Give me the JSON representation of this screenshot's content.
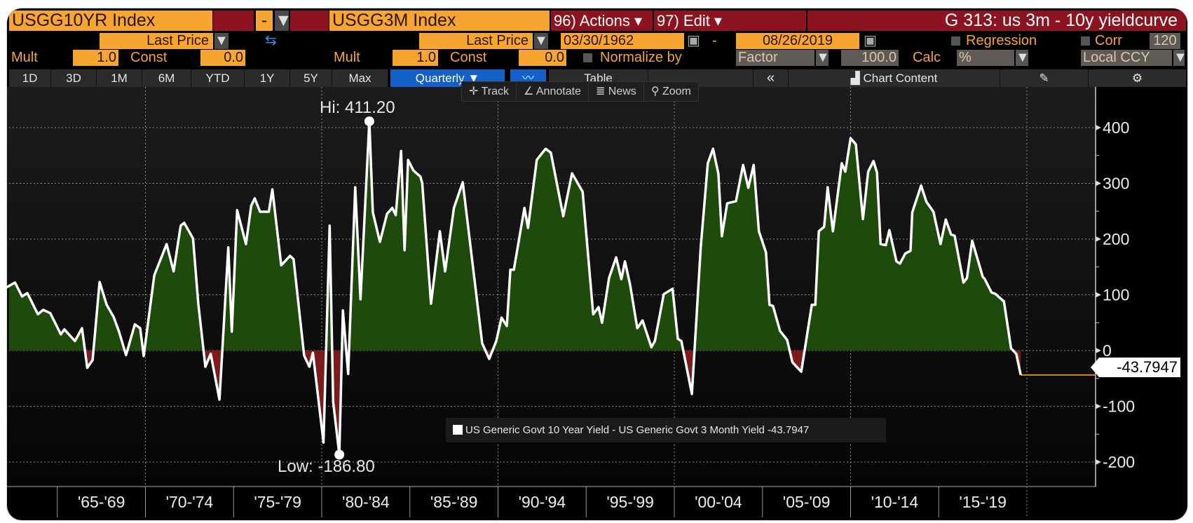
{
  "header": {
    "security1": "USGG10YR Index",
    "operator": "-",
    "security2": "USGG3M Index",
    "actions": "96) Actions ▾",
    "edit": "97) Edit ▾",
    "title": "G 313: us 3m - 10y yieldcurve"
  },
  "row2": {
    "field1": "Last Price",
    "field2": "Last Price",
    "start_date": "03/30/1962",
    "date_sep": "-",
    "end_date": "08/26/2019",
    "regression": "Regression",
    "corr": "Corr",
    "corr_value": "120"
  },
  "row3": {
    "mult_label": "Mult",
    "mult1": "1.0",
    "const_label": "Const",
    "const1": "0.0",
    "mult2": "1.0",
    "const2": "0.0",
    "normalize_label": "Normalize by",
    "normalize_value": "Factor",
    "factor_value": "100.0",
    "calc_label": "Calc",
    "calc_value": "%",
    "currency": "Local CCY"
  },
  "toolbar": {
    "ranges": [
      "1D",
      "3D",
      "1M",
      "6M",
      "YTD",
      "1Y",
      "5Y",
      "Max"
    ],
    "frequency": "Quarterly ▼",
    "table": "Table",
    "collapse": "«",
    "chart_content": "Chart Content"
  },
  "chart_tools": [
    "Track",
    "Annotate",
    "News",
    "Zoom"
  ],
  "colors": {
    "positive_fill": "#1e4a0b",
    "negative_fill": "#7c1a1c",
    "line": "#ffffff",
    "last_line": "#d4882a"
  },
  "chart_data": {
    "type": "area",
    "title": "G 313: us 3m - 10y yieldcurve",
    "legend": "US Generic Govt 10 Year Yield - US Generic Govt 3 Month Yield -43.7947",
    "last_value": "-43.7947",
    "hi_label": "Hi: 411.20",
    "low_label": "Low: -186.80",
    "hi": {
      "x": 1982.7,
      "y": 411.2
    },
    "low": {
      "x": 1981.0,
      "y": -186.8
    },
    "ylim": [
      -230,
      440
    ],
    "yticks": [
      400,
      300,
      200,
      100,
      0,
      -100,
      -200
    ],
    "ytick_labels": [
      "400",
      "300",
      "200",
      "100",
      "0",
      "-100",
      "-200"
    ],
    "x_periods": [
      "'65-'69",
      "'70-'74",
      "'75-'79",
      "'80-'84",
      "'85-'89",
      "'90-'94",
      "'95-'99",
      "'00-'04",
      "'05-'09",
      "'10-'14",
      "'15-'19"
    ],
    "grid": true,
    "points": [
      [
        1962.1,
        113
      ],
      [
        1962.6,
        122
      ],
      [
        1963.0,
        97
      ],
      [
        1963.3,
        103
      ],
      [
        1963.9,
        65
      ],
      [
        1964.2,
        73
      ],
      [
        1964.6,
        67
      ],
      [
        1965.2,
        29
      ],
      [
        1965.4,
        38
      ],
      [
        1966.0,
        17
      ],
      [
        1966.4,
        40
      ],
      [
        1966.7,
        -31
      ],
      [
        1967.0,
        -17
      ],
      [
        1967.4,
        123
      ],
      [
        1967.8,
        82
      ],
      [
        1968.2,
        60
      ],
      [
        1968.5,
        34
      ],
      [
        1968.9,
        -8
      ],
      [
        1969.4,
        47
      ],
      [
        1969.7,
        40
      ],
      [
        1969.9,
        -10
      ],
      [
        1970.5,
        135
      ],
      [
        1971.2,
        191
      ],
      [
        1971.6,
        142
      ],
      [
        1972.0,
        224
      ],
      [
        1972.2,
        229
      ],
      [
        1972.7,
        201
      ],
      [
        1973.0,
        84
      ],
      [
        1973.4,
        -29
      ],
      [
        1973.7,
        -6
      ],
      [
        1974.2,
        -88
      ],
      [
        1974.7,
        185
      ],
      [
        1974.9,
        34
      ],
      [
        1975.2,
        252
      ],
      [
        1975.7,
        191
      ],
      [
        1976.0,
        260
      ],
      [
        1976.2,
        273
      ],
      [
        1976.5,
        249
      ],
      [
        1977.0,
        249
      ],
      [
        1977.2,
        289
      ],
      [
        1977.7,
        153
      ],
      [
        1978.2,
        170
      ],
      [
        1978.4,
        164
      ],
      [
        1979.0,
        -9
      ],
      [
        1979.3,
        -29
      ],
      [
        1979.5,
        -4
      ],
      [
        1980.1,
        -165
      ],
      [
        1980.45,
        224
      ],
      [
        1980.65,
        -92
      ],
      [
        1981.0,
        -186.8
      ],
      [
        1981.2,
        72
      ],
      [
        1981.5,
        -42
      ],
      [
        1981.9,
        293
      ],
      [
        1982.2,
        92
      ],
      [
        1982.7,
        411.2
      ],
      [
        1982.9,
        248
      ],
      [
        1983.3,
        195
      ],
      [
        1983.7,
        245
      ],
      [
        1984.0,
        256
      ],
      [
        1984.2,
        243
      ],
      [
        1984.5,
        358
      ],
      [
        1984.7,
        180
      ],
      [
        1984.9,
        342
      ],
      [
        1985.2,
        323
      ],
      [
        1985.6,
        312
      ],
      [
        1985.7,
        300
      ],
      [
        1986.2,
        84
      ],
      [
        1986.7,
        214
      ],
      [
        1987.0,
        142
      ],
      [
        1987.5,
        256
      ],
      [
        1988.0,
        302
      ],
      [
        1989.1,
        13
      ],
      [
        1989.5,
        -15
      ],
      [
        1989.9,
        17
      ],
      [
        1990.2,
        59
      ],
      [
        1990.5,
        44
      ],
      [
        1990.7,
        145
      ],
      [
        1990.9,
        145
      ],
      [
        1991.5,
        256
      ],
      [
        1991.7,
        220
      ],
      [
        1992.2,
        342
      ],
      [
        1992.7,
        362
      ],
      [
        1993.0,
        355
      ],
      [
        1993.7,
        241
      ],
      [
        1994.2,
        318
      ],
      [
        1994.8,
        285
      ],
      [
        1995.4,
        65
      ],
      [
        1995.7,
        78
      ],
      [
        1995.9,
        50
      ],
      [
        1996.3,
        130
      ],
      [
        1996.7,
        167
      ],
      [
        1997.0,
        128
      ],
      [
        1997.2,
        160
      ],
      [
        1997.5,
        117
      ],
      [
        1997.9,
        40
      ],
      [
        1998.2,
        54
      ],
      [
        1998.7,
        6
      ],
      [
        1998.9,
        17
      ],
      [
        1999.4,
        101
      ],
      [
        1999.9,
        111
      ],
      [
        2000.2,
        21
      ],
      [
        2000.4,
        17
      ],
      [
        2001.0,
        -78
      ],
      [
        2001.5,
        185
      ],
      [
        2001.9,
        336
      ],
      [
        2002.2,
        362
      ],
      [
        2002.5,
        317
      ],
      [
        2002.7,
        205
      ],
      [
        2003.0,
        264
      ],
      [
        2003.5,
        268
      ],
      [
        2003.9,
        333
      ],
      [
        2004.2,
        292
      ],
      [
        2004.5,
        333
      ],
      [
        2004.8,
        214
      ],
      [
        2005.2,
        176
      ],
      [
        2005.4,
        82
      ],
      [
        2005.6,
        80
      ],
      [
        2006.0,
        35
      ],
      [
        2006.4,
        19
      ],
      [
        2006.7,
        -21
      ],
      [
        2007.2,
        -38
      ],
      [
        2007.8,
        82
      ],
      [
        2008.0,
        82
      ],
      [
        2008.2,
        214
      ],
      [
        2008.5,
        222
      ],
      [
        2008.7,
        293
      ],
      [
        2009.0,
        214
      ],
      [
        2009.5,
        336
      ],
      [
        2009.7,
        321
      ],
      [
        2010.0,
        381
      ],
      [
        2010.3,
        370
      ],
      [
        2010.7,
        236
      ],
      [
        2011.0,
        321
      ],
      [
        2011.3,
        340
      ],
      [
        2011.5,
        319
      ],
      [
        2011.7,
        191
      ],
      [
        2012.0,
        189
      ],
      [
        2012.2,
        216
      ],
      [
        2012.6,
        160
      ],
      [
        2012.8,
        156
      ],
      [
        2013.1,
        174
      ],
      [
        2013.4,
        179
      ],
      [
        2013.5,
        248
      ],
      [
        2014.0,
        296
      ],
      [
        2014.3,
        267
      ],
      [
        2014.7,
        249
      ],
      [
        2015.1,
        191
      ],
      [
        2015.4,
        235
      ],
      [
        2015.7,
        208
      ],
      [
        2015.9,
        206
      ],
      [
        2016.4,
        122
      ],
      [
        2016.6,
        130
      ],
      [
        2016.9,
        197
      ],
      [
        2017.5,
        132
      ],
      [
        2017.6,
        129
      ],
      [
        2018.0,
        104
      ],
      [
        2018.2,
        102
      ],
      [
        2018.7,
        88
      ],
      [
        2019.1,
        4
      ],
      [
        2019.4,
        -6
      ],
      [
        2019.65,
        -43.7947
      ]
    ]
  }
}
